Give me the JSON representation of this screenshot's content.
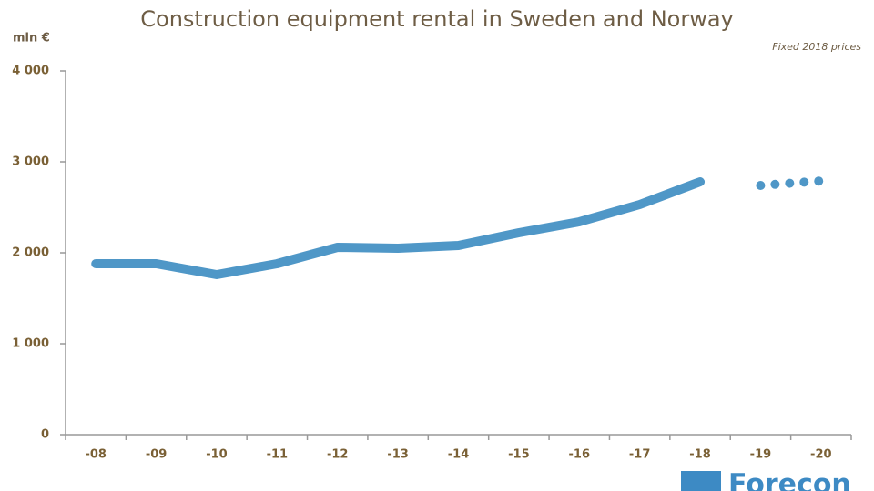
{
  "chart_data": {
    "type": "line",
    "title": "Construction equipment rental in Sweden and Norway",
    "y_unit": "mln €",
    "note": "Fixed 2018 prices",
    "logo": "Forecon",
    "categories": [
      "-08",
      "-09",
      "-10",
      "-11",
      "-12",
      "-13",
      "-14",
      "-15",
      "-16",
      "-17",
      "-18",
      "-19",
      "-20"
    ],
    "series": [
      {
        "color": "#4f97c7",
        "style": "solid",
        "values": [
          1880,
          1880,
          1760,
          1880,
          2060,
          2050,
          2080,
          2220,
          2340,
          2530,
          2780,
          null,
          null
        ]
      },
      {
        "color": "#4f97c7",
        "style": "dotted",
        "values": [
          null,
          null,
          null,
          null,
          null,
          null,
          null,
          null,
          null,
          null,
          null,
          2740,
          2790
        ]
      }
    ],
    "ylim": [
      0,
      4000
    ],
    "yticks": [
      0,
      {
        "value": 1000,
        "label": "1 000"
      },
      {
        "value": 2000,
        "label": "2 000"
      },
      {
        "value": 3000,
        "label": "3 000"
      },
      {
        "value": 4000,
        "label": "4 000"
      }
    ],
    "grid": false
  }
}
